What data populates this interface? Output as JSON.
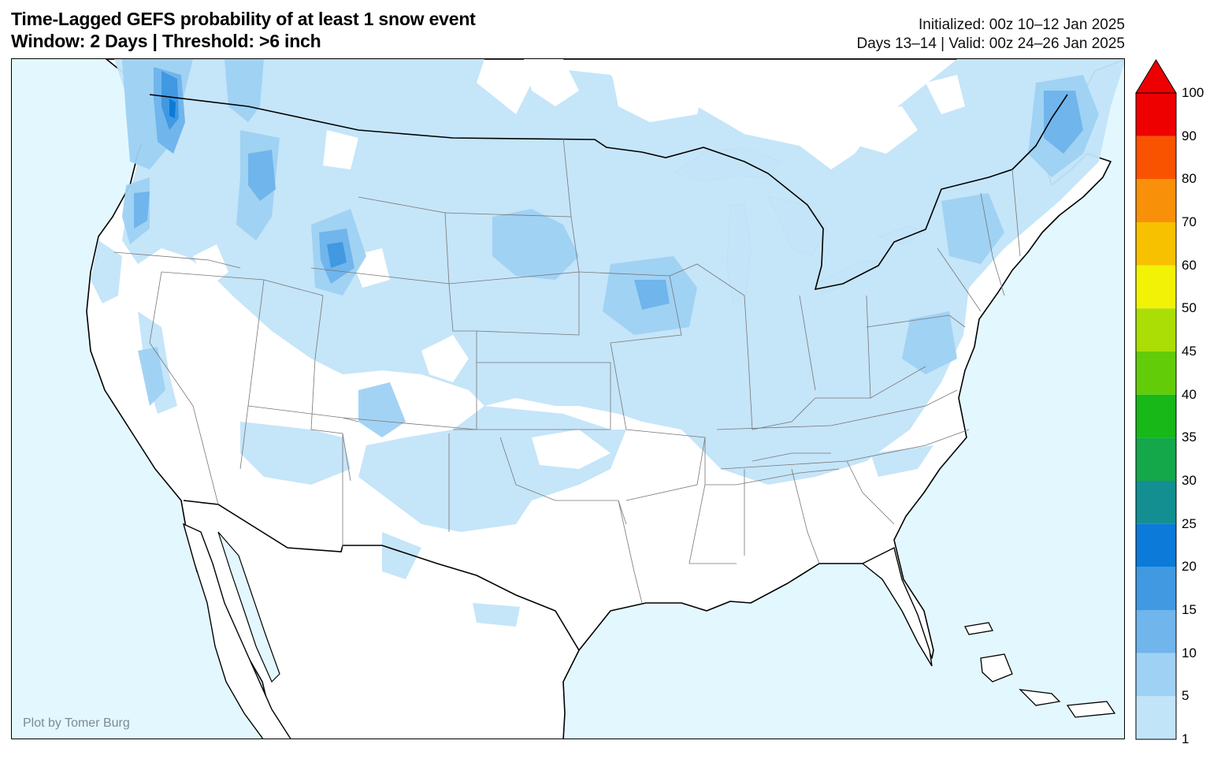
{
  "header": {
    "title_line1": "Time-Lagged GEFS probability of at least 1 snow event",
    "title_line2": "Window: 2 Days | Threshold: >6 inch",
    "initialized": "Initialized: 00z 10–12 Jan 2025",
    "valid": "Days 13–14 | Valid: 00z 24–26 Jan 2025"
  },
  "map": {
    "credit": "Plot by Tomer Burg",
    "ocean_color": "#e3f8fe",
    "land_color": "#ffffff"
  },
  "colorbar": {
    "levels": [
      "1",
      "5",
      "10",
      "15",
      "20",
      "25",
      "30",
      "35",
      "40",
      "45",
      "50",
      "60",
      "70",
      "80",
      "90",
      "100"
    ],
    "colors": [
      "#c2e4f9",
      "#9ed1f3",
      "#70b5ec",
      "#4099e1",
      "#0b7ad8",
      "#138f92",
      "#14a84a",
      "#17b818",
      "#63cc09",
      "#abde04",
      "#f2f207",
      "#f8c100",
      "#f9900a",
      "#fa5300",
      "#ee0000"
    ]
  }
}
